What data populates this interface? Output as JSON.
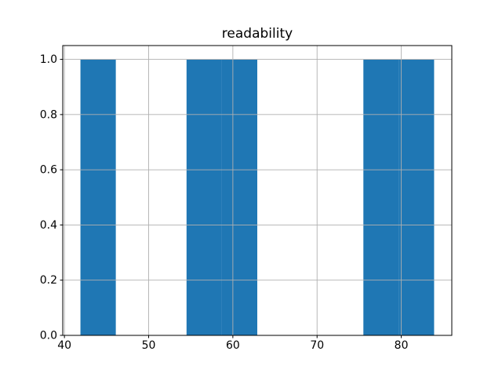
{
  "chart_data": {
    "type": "bar",
    "subtype": "histogram",
    "title": "readability",
    "xlabel": "",
    "ylabel": "",
    "bin_edges": [
      41.9,
      46.1,
      50.3,
      54.5,
      58.7,
      62.9,
      67.1,
      71.3,
      75.5,
      79.7,
      83.9
    ],
    "counts": [
      1,
      0,
      0,
      1,
      1,
      0,
      0,
      0,
      1,
      1
    ],
    "xlim": [
      39.8,
      86.0
    ],
    "ylim": [
      0,
      1.05
    ],
    "xticks": [
      40,
      50,
      60,
      70,
      80
    ],
    "xtick_labels": [
      "40",
      "50",
      "60",
      "70",
      "80"
    ],
    "yticks": [
      0.0,
      0.2,
      0.4,
      0.6,
      0.8,
      1.0
    ],
    "ytick_labels": [
      "0.0",
      "0.2",
      "0.4",
      "0.6",
      "0.8",
      "1.0"
    ],
    "grid": true,
    "legend": false,
    "bar_color": "#1f77b4",
    "grid_color": "#b0b0b0",
    "spine_color": "#000000",
    "text_color": "#000000",
    "background_color": "#ffffff"
  }
}
